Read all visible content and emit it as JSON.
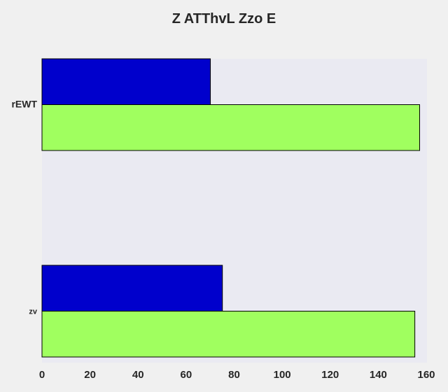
{
  "chart_data": {
    "type": "bar",
    "orientation": "horizontal",
    "title": "Z ATThvL Zzo E",
    "xlabel": "",
    "ylabel": "",
    "categories": [
      "rEWT",
      "zv"
    ],
    "series": [
      {
        "color": "#0000cc",
        "values": [
          70,
          75
        ]
      },
      {
        "color": "#a0ff5f",
        "values": [
          157,
          155
        ]
      }
    ],
    "xlim": [
      0,
      160
    ],
    "xticks": [
      0,
      20,
      40,
      60,
      80,
      100,
      120,
      140,
      160
    ],
    "grid": false,
    "legend": "none",
    "plot_background": "#eaeaf2",
    "page_background": "#f0f0f0",
    "bar_edge_color": "#000000"
  }
}
